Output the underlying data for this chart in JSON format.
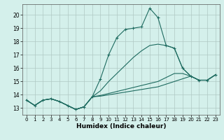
{
  "title": "",
  "xlabel": "Humidex (Indice chaleur)",
  "bg_color": "#d4f0eb",
  "grid_color": "#b0c8c4",
  "line_color": "#1e6b60",
  "xlim": [
    -0.5,
    23.5
  ],
  "ylim": [
    12.5,
    20.8
  ],
  "yticks": [
    13,
    14,
    15,
    16,
    17,
    18,
    19,
    20
  ],
  "xticks": [
    0,
    1,
    2,
    3,
    4,
    5,
    6,
    7,
    8,
    9,
    10,
    11,
    12,
    13,
    14,
    15,
    16,
    17,
    18,
    19,
    20,
    21,
    22,
    23
  ],
  "series_with_markers": [
    13.6,
    13.2,
    13.6,
    13.7,
    13.5,
    13.2,
    12.9,
    13.1,
    13.85,
    15.2,
    17.0,
    18.3,
    18.9,
    19.0,
    19.1,
    20.5,
    19.8,
    17.7,
    17.5,
    16.0,
    15.4,
    15.1,
    15.1,
    15.5
  ],
  "series_plain": [
    [
      13.6,
      13.2,
      13.6,
      13.7,
      13.5,
      13.2,
      12.9,
      13.1,
      13.85,
      14.3,
      15.0,
      15.6,
      16.2,
      16.8,
      17.3,
      17.7,
      17.8,
      17.7,
      17.5,
      16.0,
      15.4,
      15.1,
      15.1,
      15.5
    ],
    [
      13.6,
      13.2,
      13.6,
      13.7,
      13.5,
      13.2,
      12.9,
      13.1,
      13.85,
      13.95,
      14.1,
      14.25,
      14.4,
      14.55,
      14.7,
      14.85,
      15.0,
      15.3,
      15.6,
      15.6,
      15.4,
      15.1,
      15.1,
      15.5
    ],
    [
      13.6,
      13.2,
      13.6,
      13.7,
      13.5,
      13.2,
      12.9,
      13.1,
      13.85,
      13.9,
      14.0,
      14.1,
      14.2,
      14.3,
      14.4,
      14.5,
      14.6,
      14.8,
      15.0,
      15.2,
      15.4,
      15.1,
      15.1,
      15.5
    ]
  ]
}
